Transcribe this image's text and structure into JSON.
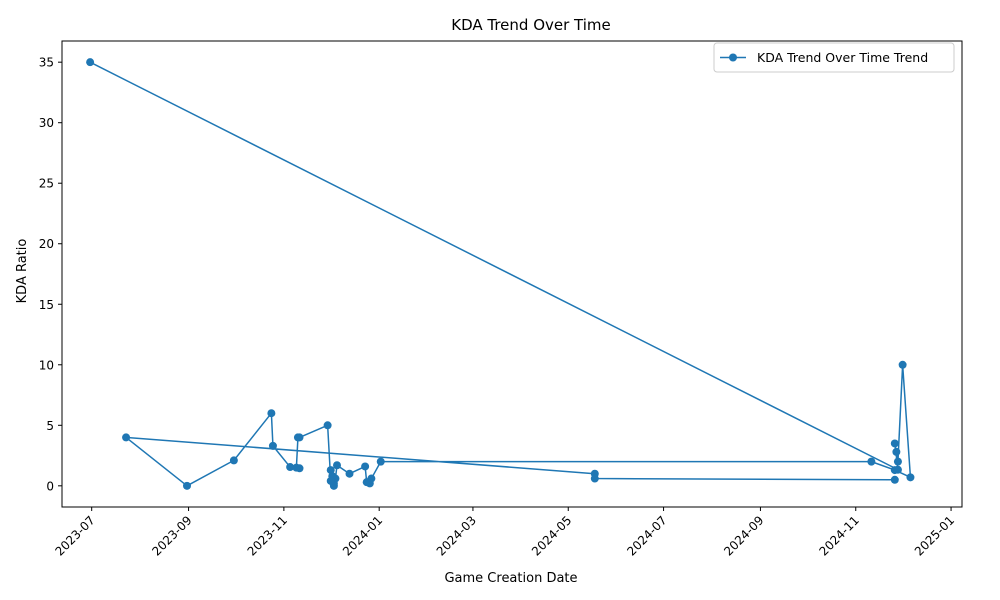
{
  "chart_data": {
    "type": "line",
    "title": "KDA Trend Over Time",
    "xlabel": "Game Creation Date",
    "ylabel": "KDA Ratio",
    "x_is_date": true,
    "xlim": [
      "2023-06-12",
      "2025-01-08"
    ],
    "ylim": [
      -1.75,
      36.75
    ],
    "x_ticks": [
      "2023-07-01",
      "2023-09-01",
      "2023-11-01",
      "2024-01-01",
      "2024-03-01",
      "2024-05-01",
      "2024-07-01",
      "2024-09-01",
      "2024-11-01",
      "2025-01-01"
    ],
    "x_tick_labels": [
      "2023-07",
      "2023-09",
      "2023-11",
      "2024-01",
      "2024-03",
      "2024-05",
      "2024-07",
      "2024-09",
      "2024-11",
      "2025-01"
    ],
    "y_ticks": [
      0,
      5,
      10,
      15,
      20,
      25,
      30,
      35
    ],
    "y_tick_labels": [
      "0",
      "5",
      "10",
      "15",
      "20",
      "25",
      "30",
      "35"
    ],
    "grid": false,
    "legend_position": "top-right",
    "color": "#1f77b4",
    "series": [
      {
        "name": "KDA Trend Over Time Trend",
        "x": [
          "2023-06-30",
          "2024-11-28",
          "2024-11-26",
          "2024-11-27",
          "2024-11-28",
          "2024-12-01",
          "2024-12-06",
          "2024-11-26",
          "2024-11-11",
          "2024-01-02",
          "2023-12-27",
          "2023-12-26",
          "2023-12-24",
          "2023-12-23",
          "2023-12-13",
          "2023-12-05",
          "2023-12-04",
          "2023-12-03",
          "2023-12-03",
          "2023-12-02",
          "2023-12-01",
          "2023-12-01",
          "2023-11-29",
          "2023-11-11",
          "2023-11-10",
          "2023-11-09",
          "2023-11-11",
          "2023-11-05",
          "2023-10-25",
          "2023-10-24",
          "2023-09-30",
          "2023-08-31",
          "2023-07-23",
          "2024-05-18",
          "2024-05-18",
          "2024-11-26"
        ],
        "y": [
          35,
          1.33,
          3.5,
          2.8,
          2.0,
          10.0,
          0.7,
          1.3,
          2.0,
          2.0,
          0.6,
          0.2,
          0.3,
          1.6,
          1.0,
          1.7,
          0.6,
          0.2,
          0.0,
          0.8,
          1.3,
          0.4,
          5.0,
          4.0,
          4.0,
          1.5,
          1.45,
          1.55,
          3.3,
          6.0,
          2.1,
          0.0,
          4.0,
          1.0,
          0.6,
          0.5
        ]
      }
    ]
  }
}
